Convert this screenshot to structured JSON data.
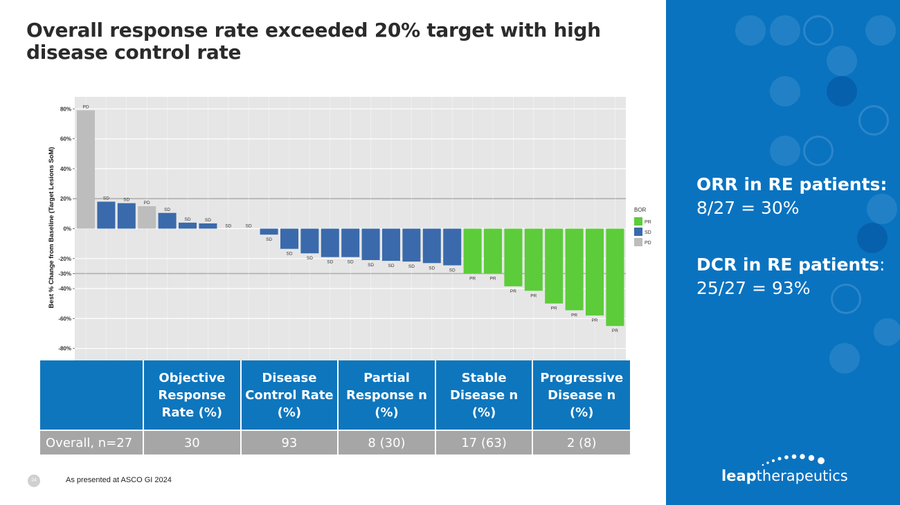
{
  "title": "Overall response rate exceeded 20% target with high disease control rate",
  "chart_data": {
    "type": "bar",
    "ylabel": "Best % Change from Baseline (Target Lesions SoM)",
    "ylim": [
      -88,
      88
    ],
    "yticks": [
      {
        "value": 80,
        "label": "80%"
      },
      {
        "value": 60,
        "label": "60%"
      },
      {
        "value": 40,
        "label": "40%"
      },
      {
        "value": 20,
        "label": "20%"
      },
      {
        "value": 0,
        "label": "0%"
      },
      {
        "value": -20,
        "label": "-20%"
      },
      {
        "value": -30,
        "label": "-30%"
      },
      {
        "value": -40,
        "label": "-40%"
      },
      {
        "value": -60,
        "label": "-60%"
      },
      {
        "value": -80,
        "label": "-80%"
      }
    ],
    "reference_lines": [
      20,
      -30
    ],
    "values": [
      79,
      18,
      17,
      15,
      10.5,
      4,
      3.5,
      0,
      0,
      -4,
      -13.5,
      -16.5,
      -19,
      -19,
      -21,
      -21.5,
      -22,
      -23,
      -24.5,
      -30,
      -30,
      -38.5,
      -41.5,
      -50,
      -54.5,
      -58,
      -65
    ],
    "categories": [
      "PD",
      "SD",
      "SD",
      "PD",
      "SD",
      "SD",
      "SD",
      "SD",
      "SD",
      "SD",
      "SD",
      "SD",
      "SD",
      "SD",
      "SD",
      "SD",
      "SD",
      "SD",
      "SD",
      "PR",
      "PR",
      "PR",
      "PR",
      "PR",
      "PR",
      "PR",
      "PR"
    ],
    "legend": {
      "title": "BOR",
      "position": "right",
      "items": [
        {
          "label": "PR",
          "color": "#5ccc3a"
        },
        {
          "label": "SD",
          "color": "#3a6aab"
        },
        {
          "label": "PD",
          "color": "#bdbdbd"
        }
      ]
    }
  },
  "table": {
    "headers": [
      "Objective Response Rate (%)",
      "Disease Control Rate (%)",
      "Partial Response n (%)",
      "Stable Disease n (%)",
      "Progressive Disease n (%)"
    ],
    "row_label": "Overall, n=27",
    "row_values": [
      "30",
      "93",
      "8 (30)",
      "17 (63)",
      "2 (8)"
    ]
  },
  "footer": {
    "page_number": "24",
    "note": "As presented at ASCO GI 2024"
  },
  "panel": {
    "orr_title": "ORR in RE patients:",
    "orr_value": "8/27 = 30%",
    "dcr_title": "DCR in RE patients",
    "dcr_colon": ":",
    "dcr_value": "25/27 = 93%",
    "logo_bold": "leap",
    "logo_rest": "therapeutics"
  },
  "colors": {
    "panel_bg": "#0a73c0",
    "table_header": "#0e76bd",
    "table_row": "#a6a6a6"
  }
}
